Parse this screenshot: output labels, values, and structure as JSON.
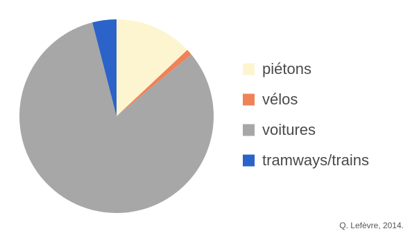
{
  "chart_data": {
    "type": "pie",
    "title": "",
    "labels": [
      "piétons",
      "vélos",
      "voitures",
      "tramways/trains"
    ],
    "values": [
      13,
      1,
      82,
      4
    ],
    "unit": "%",
    "colors": [
      "#fdf5d0",
      "#f0825a",
      "#a7a7a7",
      "#2b63c9"
    ],
    "start_angle_deg": 0,
    "direction": "clockwise",
    "legend_position": "right"
  },
  "credit": "Q. Lefèvre, 2014."
}
